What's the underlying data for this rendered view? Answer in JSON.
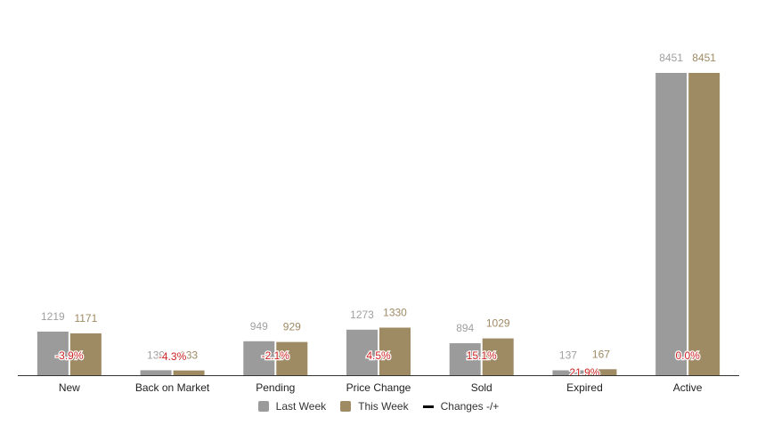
{
  "chart_data": {
    "type": "bar",
    "title": "",
    "xlabel": "",
    "ylabel": "",
    "categories": [
      "New",
      "Back on Market",
      "Pending",
      "Price Change",
      "Sold",
      "Expired",
      "Active"
    ],
    "series": [
      {
        "name": "Last Week",
        "color": "#9b9b9b",
        "label_color": "#a0a0a0",
        "values": [
          1219,
          139,
          949,
          1273,
          894,
          137,
          8451
        ]
      },
      {
        "name": "This Week",
        "color": "#9e8a63",
        "label_color": "#9e8a63",
        "values": [
          1171,
          133,
          929,
          1330,
          1029,
          167,
          8451
        ]
      }
    ],
    "changes": {
      "name": "Changes -/+",
      "color": "#cc2222",
      "values": [
        "-3.9%",
        "-4.3%",
        "-2.1%",
        "4.5%",
        "15.1%",
        "21.9%",
        "0.0%"
      ]
    },
    "ylim": [
      0,
      8451
    ],
    "grid": false,
    "legend": "bottom-center"
  }
}
